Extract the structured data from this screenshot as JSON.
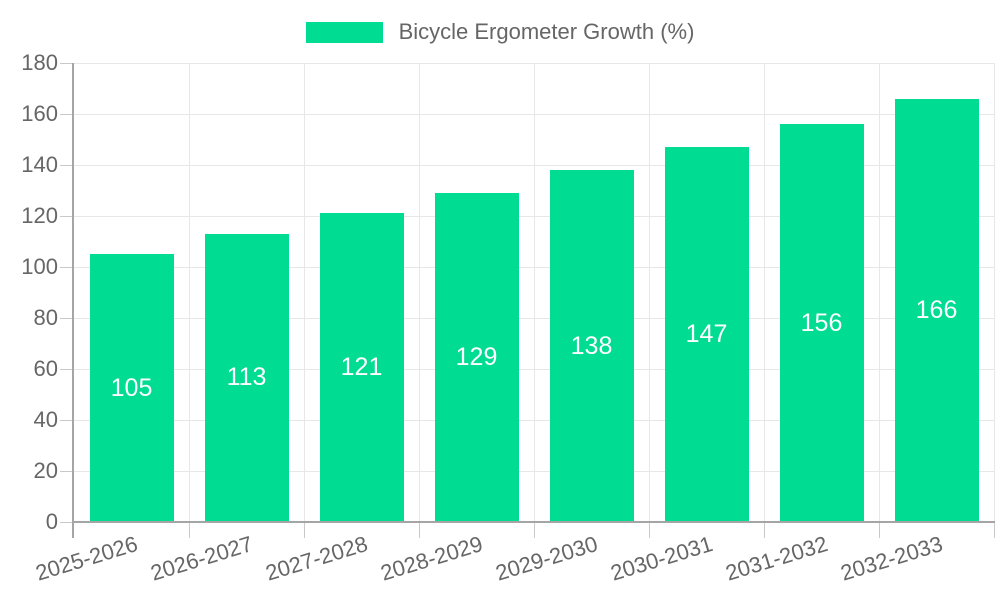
{
  "chart_data": {
    "type": "bar",
    "title": "Bicycle Ergometer Growth (%)",
    "categories": [
      "2025-2026",
      "2026-2027",
      "2027-2028",
      "2028-2029",
      "2029-2030",
      "2030-2031",
      "2031-2032",
      "2032-2033"
    ],
    "values": [
      105,
      113,
      121,
      129,
      138,
      147,
      156,
      166
    ],
    "xlabel": "",
    "ylabel": "",
    "ylim": [
      0,
      180
    ],
    "yticks": [
      0,
      20,
      40,
      60,
      80,
      100,
      120,
      140,
      160,
      180
    ],
    "grid": true,
    "legend_position": "top",
    "value_labels_inside_bars": true,
    "colors": {
      "bar": "#00DC92",
      "axis_text": "#666666",
      "value_text": "#ffffff",
      "gridline": "#e7e7e7",
      "axis_line": "#a5a5a5",
      "tick": "#c9c9c9",
      "background": "#ffffff"
    }
  }
}
